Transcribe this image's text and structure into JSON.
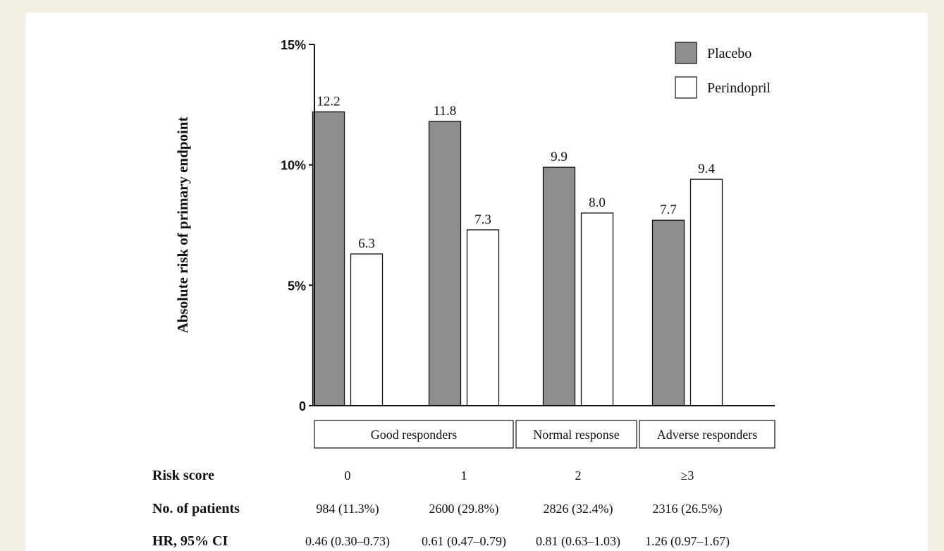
{
  "chart_data": {
    "type": "bar",
    "title": "",
    "xlabel": "",
    "ylabel": "Absolute risk of primary endpoint",
    "ylim": [
      0,
      15
    ],
    "y_ticks": [
      {
        "value": 0,
        "label": "0"
      },
      {
        "value": 5,
        "label": "5%"
      },
      {
        "value": 10,
        "label": "10%"
      },
      {
        "value": 15,
        "label": "15%"
      }
    ],
    "categories": [
      "0",
      "1",
      "2",
      "≥3"
    ],
    "series": [
      {
        "name": "Placebo",
        "color": "#8e8e8e",
        "values": [
          12.2,
          11.8,
          9.9,
          7.7
        ],
        "labels": [
          "12.2",
          "11.8",
          "9.9",
          "7.7"
        ]
      },
      {
        "name": "Perindopril",
        "color": "#ffffff",
        "values": [
          6.3,
          7.3,
          8.0,
          9.4
        ],
        "labels": [
          "6.3",
          "7.3",
          "8.0",
          "9.4"
        ]
      }
    ],
    "legend_position": "top-right",
    "grid": false,
    "groups": [
      {
        "label": "Good responders",
        "categories": [
          "0",
          "1"
        ]
      },
      {
        "label": "Normal response",
        "categories": [
          "2"
        ]
      },
      {
        "label": "Adverse responders",
        "categories": [
          "≥3"
        ]
      }
    ],
    "table": {
      "rows": [
        {
          "label": "Risk score",
          "values": [
            "0",
            "1",
            "2",
            "≥3"
          ]
        },
        {
          "label": "No. of patients",
          "values": [
            "984 (11.3%)",
            "2600 (29.8%)",
            "2826 (32.4%)",
            "2316 (26.5%)"
          ]
        },
        {
          "label": "HR, 95% CI",
          "values": [
            "0.46 (0.30–0.73)",
            "0.61 (0.47–0.79)",
            "0.81 (0.63–1.03)",
            "1.26 (0.97–1.67)"
          ]
        }
      ]
    }
  }
}
